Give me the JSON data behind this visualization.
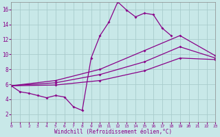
{
  "xlabel": "Windchill (Refroidissement éolien,°C)",
  "background_color": "#c8e8e8",
  "grid_color": "#a8cccc",
  "line_color": "#880088",
  "xlim": [
    0,
    23
  ],
  "ylim": [
    1,
    17
  ],
  "xticks": [
    0,
    1,
    2,
    3,
    4,
    5,
    6,
    7,
    8,
    9,
    10,
    11,
    12,
    13,
    14,
    15,
    16,
    17,
    18,
    19,
    20,
    21,
    22,
    23
  ],
  "yticks": [
    2,
    4,
    6,
    8,
    10,
    12,
    14,
    16
  ],
  "series_main_x": [
    0,
    1,
    2,
    3,
    4,
    5,
    6,
    7,
    8,
    9,
    10,
    11,
    12,
    13,
    14,
    15,
    16,
    17,
    18
  ],
  "series_main_y": [
    5.8,
    5.0,
    4.8,
    4.5,
    4.2,
    4.5,
    4.3,
    3.0,
    2.5,
    9.5,
    12.5,
    14.3,
    17.0,
    15.9,
    15.0,
    15.5,
    15.3,
    13.5,
    12.5
  ],
  "line1_x": [
    0,
    5,
    10,
    15,
    19,
    23
  ],
  "line1_y": [
    5.8,
    6.5,
    8.0,
    10.5,
    12.5,
    9.8
  ],
  "line2_x": [
    0,
    5,
    10,
    15,
    19,
    23
  ],
  "line2_y": [
    5.8,
    6.2,
    7.3,
    9.0,
    11.0,
    9.5
  ],
  "line3_x": [
    0,
    5,
    10,
    15,
    19,
    23
  ],
  "line3_y": [
    5.8,
    5.9,
    6.5,
    7.8,
    9.5,
    9.3
  ]
}
